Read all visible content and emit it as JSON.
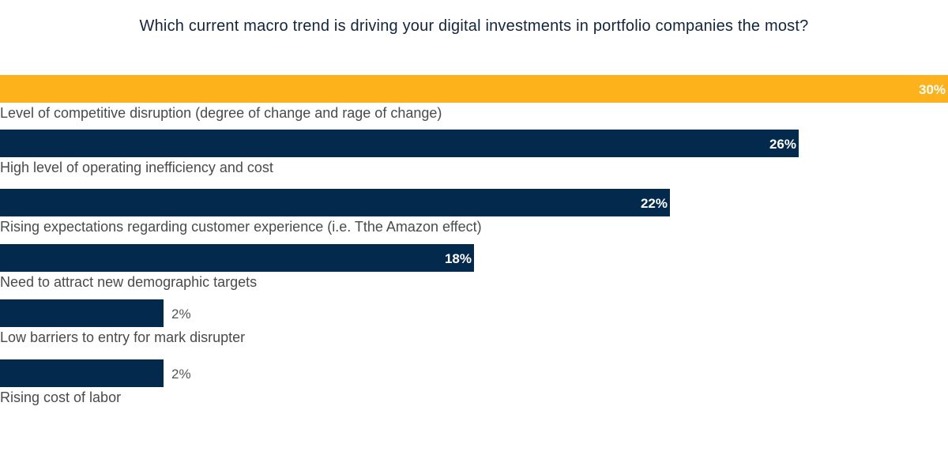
{
  "chart_data": {
    "type": "bar",
    "orientation": "horizontal",
    "title": "Which current macro trend is driving your digital investments in portfolio companies the most?",
    "xlabel": "",
    "ylabel": "",
    "grid": false,
    "legend": "none",
    "value_format": "percent",
    "categories": [
      "Level of competitive disruption (degree of change and rage of change)",
      "High level of operating inefficiency and cost",
      "Rising expectations regarding customer experience (i.e. Tthe Amazon effect)",
      "Need to attract new demographic targets",
      "Low barriers to entry for mark disrupter",
      "Rising cost of labor"
    ],
    "values": [
      30,
      26,
      22,
      18,
      2,
      2
    ],
    "value_labels": [
      "30%",
      "26%",
      "22%",
      "18%",
      "2%",
      "2%"
    ],
    "colors": [
      "#fdb11b",
      "#03294d",
      "#03294d",
      "#03294d",
      "#03294d",
      "#03294d"
    ],
    "highlight_color": "#fdb11b",
    "bar_color": "#03294d"
  }
}
